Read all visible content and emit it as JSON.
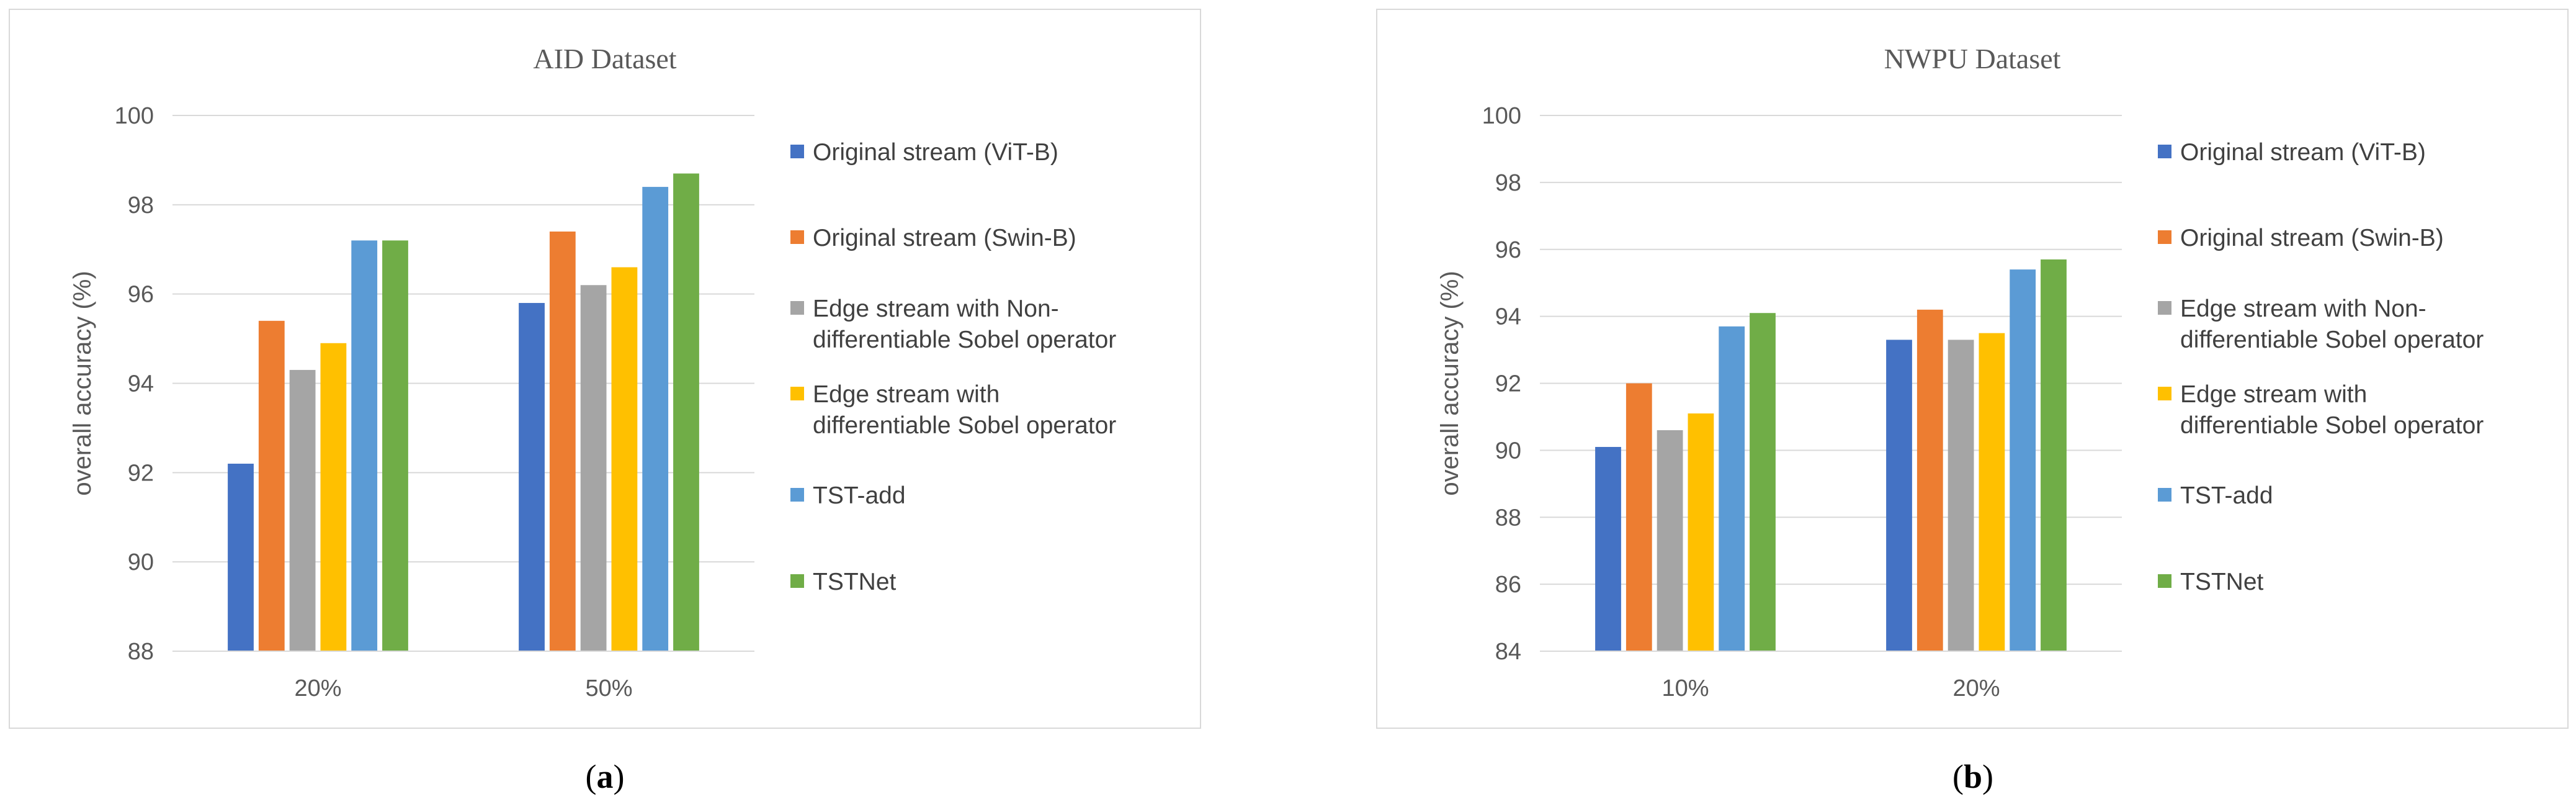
{
  "chart_data": [
    {
      "type": "bar",
      "title": "AID Dataset",
      "xlabel": "",
      "ylabel": "overall accuracy (%)",
      "ylim": [
        88,
        100
      ],
      "yticks": [
        88,
        90,
        92,
        94,
        96,
        98,
        100
      ],
      "categories": [
        "20%",
        "50%"
      ],
      "legend_position": "right",
      "series": [
        {
          "name": "Original stream (ViT-B)",
          "values": [
            92.2,
            95.8
          ]
        },
        {
          "name": "Original stream (Swin-B)",
          "values": [
            95.4,
            97.4
          ]
        },
        {
          "name": "Edge stream with Non-\ndifferentiable Sobel operator",
          "values": [
            94.3,
            96.2
          ]
        },
        {
          "name": "Edge stream with\ndifferentiable Sobel operator",
          "values": [
            94.9,
            96.6
          ]
        },
        {
          "name": "TST-add",
          "values": [
            97.2,
            98.4
          ]
        },
        {
          "name": "TSTNet",
          "values": [
            97.2,
            98.7
          ]
        }
      ],
      "caption_letter": "a"
    },
    {
      "type": "bar",
      "title": "NWPU Dataset",
      "xlabel": "",
      "ylabel": "overall accuracy (%)",
      "ylim": [
        84,
        100
      ],
      "yticks": [
        84,
        86,
        88,
        90,
        92,
        94,
        96,
        98,
        100
      ],
      "categories": [
        "10%",
        "20%"
      ],
      "legend_position": "right",
      "series": [
        {
          "name": "Original stream (ViT-B)",
          "values": [
            90.1,
            93.3
          ]
        },
        {
          "name": "Original stream (Swin-B)",
          "values": [
            92.0,
            94.2
          ]
        },
        {
          "name": "Edge stream with Non-\ndifferentiable Sobel operator",
          "values": [
            90.6,
            93.3
          ]
        },
        {
          "name": "Edge stream with\ndifferentiable Sobel operator",
          "values": [
            91.1,
            93.5
          ]
        },
        {
          "name": "TST-add",
          "values": [
            93.7,
            95.4
          ]
        },
        {
          "name": "TSTNet",
          "values": [
            94.1,
            95.7
          ]
        }
      ],
      "caption_letter": "b"
    }
  ],
  "colors": {
    "series": [
      "#4472c4",
      "#ed7d31",
      "#a5a5a5",
      "#ffc000",
      "#5b9bd5",
      "#70ad47"
    ],
    "gridline": "#d9d9d9",
    "axis_text": "#595959"
  }
}
